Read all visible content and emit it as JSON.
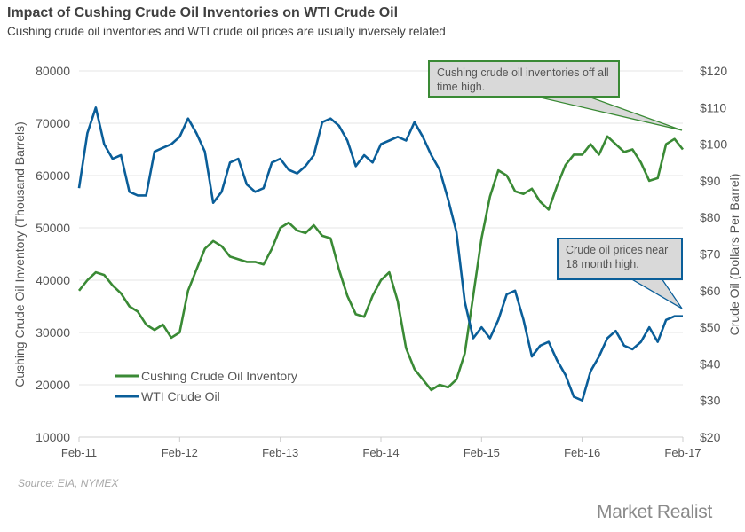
{
  "title": "Impact of Cushing Crude Oil Inventories on WTI Crude Oil",
  "subtitle": "Cushing crude oil inventories and WTI crude oil prices are usually inversely related",
  "source": "Source: EIA, NYMEX",
  "logo": "Market Realist",
  "annotations": {
    "inventory": "Cushing crude oil inventories off all time high.",
    "price": "Crude oil prices near 18 month high."
  },
  "chart_data": {
    "type": "line",
    "xlabel": "",
    "ylabel_left": "Cushing Crude Oil Inventory (Thousand Barrels)",
    "ylabel_right": "Crude Oil (Dollars Per Barrel)",
    "ylim_left": [
      10000,
      80000
    ],
    "ylim_right": [
      20,
      120
    ],
    "yticks_left": [
      "10000",
      "20000",
      "30000",
      "40000",
      "50000",
      "60000",
      "70000",
      "80000"
    ],
    "yticks_right": [
      "$20",
      "$30",
      "$40",
      "$50",
      "$60",
      "$70",
      "$80",
      "$90",
      "$100",
      "$110",
      "$120"
    ],
    "xticks": [
      "Feb-11",
      "Feb-12",
      "Feb-13",
      "Feb-14",
      "Feb-15",
      "Feb-16",
      "Feb-17"
    ],
    "grid": true,
    "legend_position": "bottom-left",
    "x": [
      "2011-02",
      "2011-03",
      "2011-04",
      "2011-05",
      "2011-06",
      "2011-07",
      "2011-08",
      "2011-09",
      "2011-10",
      "2011-11",
      "2011-12",
      "2012-01",
      "2012-02",
      "2012-03",
      "2012-04",
      "2012-05",
      "2012-06",
      "2012-07",
      "2012-08",
      "2012-09",
      "2012-10",
      "2012-11",
      "2012-12",
      "2013-01",
      "2013-02",
      "2013-03",
      "2013-04",
      "2013-05",
      "2013-06",
      "2013-07",
      "2013-08",
      "2013-09",
      "2013-10",
      "2013-11",
      "2013-12",
      "2014-01",
      "2014-02",
      "2014-03",
      "2014-04",
      "2014-05",
      "2014-06",
      "2014-07",
      "2014-08",
      "2014-09",
      "2014-10",
      "2014-11",
      "2014-12",
      "2015-01",
      "2015-02",
      "2015-03",
      "2015-04",
      "2015-05",
      "2015-06",
      "2015-07",
      "2015-08",
      "2015-09",
      "2015-10",
      "2015-11",
      "2015-12",
      "2016-01",
      "2016-02",
      "2016-03",
      "2016-04",
      "2016-05",
      "2016-06",
      "2016-07",
      "2016-08",
      "2016-09",
      "2016-10",
      "2016-11",
      "2016-12",
      "2017-01",
      "2017-02"
    ],
    "series": [
      {
        "name": "Cushing Crude Oil Inventory",
        "axis": "left",
        "color": "#3a8a35",
        "values": [
          38000,
          40000,
          41500,
          41000,
          39000,
          37500,
          35000,
          34000,
          31500,
          30500,
          31500,
          29000,
          30000,
          38000,
          42000,
          46000,
          47500,
          46500,
          44500,
          44000,
          43500,
          43500,
          43000,
          46000,
          50000,
          51000,
          49500,
          49000,
          50500,
          48500,
          48000,
          42000,
          37000,
          33500,
          33000,
          37000,
          40000,
          41500,
          36000,
          27000,
          23000,
          21000,
          19000,
          20000,
          19500,
          21000,
          26000,
          37000,
          48000,
          56000,
          61000,
          60000,
          57000,
          56500,
          57500,
          55000,
          53500,
          58000,
          62000,
          64000,
          64000,
          66000,
          64000,
          67500,
          66000,
          64500,
          65000,
          62500,
          59000,
          59500,
          66000,
          67000,
          65000
        ]
      },
      {
        "name": "WTI Crude Oil",
        "axis": "right",
        "color": "#0a5e99",
        "values": [
          88,
          103,
          110,
          100,
          96,
          97,
          87,
          86,
          86,
          98,
          99,
          100,
          102,
          107,
          103,
          98,
          84,
          87,
          95,
          96,
          89,
          87,
          88,
          95,
          96,
          93,
          92,
          94,
          97,
          106,
          107,
          105,
          101,
          94,
          97,
          95,
          100,
          101,
          102,
          101,
          106,
          102,
          97,
          93,
          85,
          76,
          57,
          47,
          50,
          47,
          52,
          59,
          60,
          52,
          42,
          45,
          46,
          41,
          37,
          31,
          30,
          38,
          42,
          47,
          49,
          45,
          44,
          46,
          50,
          46,
          52,
          53,
          53
        ]
      }
    ]
  }
}
